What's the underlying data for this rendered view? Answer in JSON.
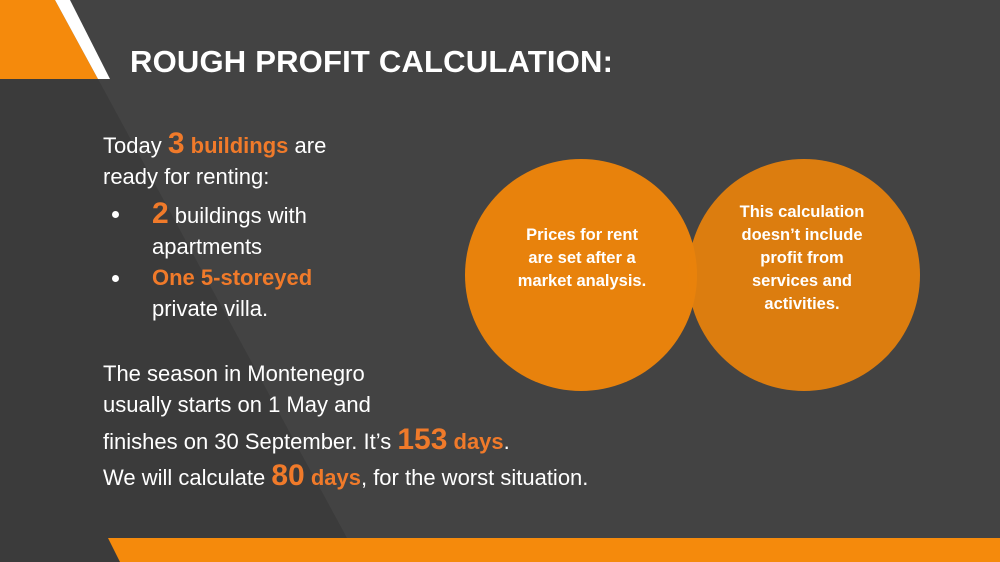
{
  "slide": {
    "title": "ROUGH PROFIT CALCULATION:",
    "intro": {
      "pre": "Today ",
      "num": "3",
      "word": " buildings",
      "post": " are",
      "line2": "ready for renting:"
    },
    "bullets": [
      {
        "num": "2",
        "rest": " buildings with",
        "line2": "apartments"
      },
      {
        "highlight": "One 5-storeyed",
        "line2": "private villa."
      }
    ],
    "season": {
      "line1": "The season in Montenegro",
      "line2": "usually starts on 1 May and",
      "line3_pre": "finishes on  30 September. It’s ",
      "days_num": "153",
      "days_word": " days",
      "line3_post": ".",
      "line4_pre": "We will calculate ",
      "calc_num": "80",
      "calc_word": " days",
      "line4_post": ", for the worst situation."
    },
    "circles": [
      {
        "lines": [
          "Prices for rent",
          "are set after a",
          "market analysis."
        ]
      },
      {
        "lines": [
          "This calculation",
          "doesn’t include",
          "profit from",
          "services and",
          "activities."
        ]
      }
    ]
  },
  "colors": {
    "background": "#434343",
    "dark_panel": "#3a3a3a",
    "accent": "#f07a2a",
    "circle_fill": "#e8820c"
  }
}
